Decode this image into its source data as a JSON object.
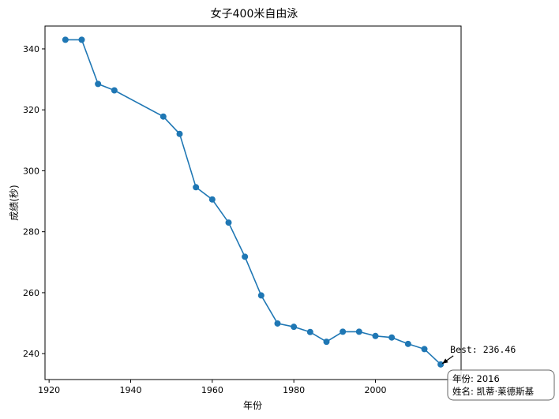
{
  "chart_data": {
    "type": "line",
    "title": "女子400米自由泳",
    "xlabel": "年份",
    "ylabel": "成绩(秒)",
    "xlim": [
      1919,
      2021
    ],
    "ylim": [
      231.5,
      347.5
    ],
    "x_ticks": [
      1920,
      1940,
      1960,
      1980,
      2000
    ],
    "y_ticks": [
      240,
      260,
      280,
      300,
      320,
      340
    ],
    "color": "#1f77b4",
    "grid": false,
    "series": [
      {
        "x": [
          1924,
          1928,
          1932,
          1936,
          1948,
          1952,
          1956,
          1960,
          1964,
          1968,
          1972,
          1976,
          1980,
          1984,
          1988,
          1992,
          1996,
          2000,
          2004,
          2008,
          2012,
          2016
        ],
        "values": [
          343.0,
          343.0,
          328.5,
          326.4,
          317.8,
          312.1,
          294.6,
          290.6,
          283.0,
          271.8,
          259.1,
          249.9,
          248.8,
          247.1,
          243.9,
          247.2,
          247.2,
          245.8,
          245.3,
          243.2,
          241.5,
          236.46
        ]
      }
    ],
    "annotation": {
      "text": "Best: 236.46",
      "x": 2016,
      "y": 236.46
    },
    "info_box": {
      "year_line": "年份: 2016",
      "name_line": "姓名: 凯蒂·莱德斯基"
    }
  }
}
